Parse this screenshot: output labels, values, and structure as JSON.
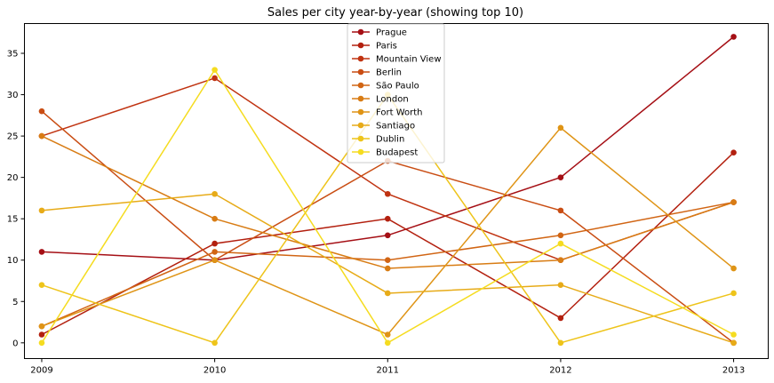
{
  "chart_data": {
    "type": "line",
    "title": "Sales per city year-by-year (showing top 10)",
    "xlabel": "",
    "ylabel": "",
    "x": [
      2009,
      2010,
      2011,
      2012,
      2013
    ],
    "ylim": [
      -1.9,
      38.6
    ],
    "y_ticks": [
      0,
      5,
      10,
      15,
      20,
      25,
      30,
      35
    ],
    "grid": false,
    "legend_position": "top-center",
    "series": [
      {
        "name": "Prague",
        "color": "#a50f15",
        "values": [
          11,
          10,
          13,
          20,
          37
        ]
      },
      {
        "name": "Paris",
        "color": "#b3200f",
        "values": [
          1,
          12,
          15,
          3,
          23
        ]
      },
      {
        "name": "Mountain View",
        "color": "#c03311",
        "values": [
          25,
          32,
          18,
          10,
          17
        ]
      },
      {
        "name": "Berlin",
        "color": "#c94d13",
        "values": [
          28,
          10,
          22,
          16,
          0
        ]
      },
      {
        "name": "São Paulo",
        "color": "#d16514",
        "values": [
          2,
          11,
          10,
          13,
          17
        ]
      },
      {
        "name": "London",
        "color": "#d87c14",
        "values": [
          25,
          15,
          9,
          10,
          17
        ]
      },
      {
        "name": "Fort Worth",
        "color": "#df9416",
        "values": [
          2,
          10,
          1,
          26,
          9
        ]
      },
      {
        "name": "Santiago",
        "color": "#e7ab18",
        "values": [
          16,
          18,
          6,
          7,
          0
        ]
      },
      {
        "name": "Dublin",
        "color": "#eec41a",
        "values": [
          7,
          0,
          30,
          0,
          6
        ]
      },
      {
        "name": "Budapest",
        "color": "#f5dc20",
        "values": [
          0,
          33,
          0,
          12,
          1
        ]
      }
    ]
  }
}
